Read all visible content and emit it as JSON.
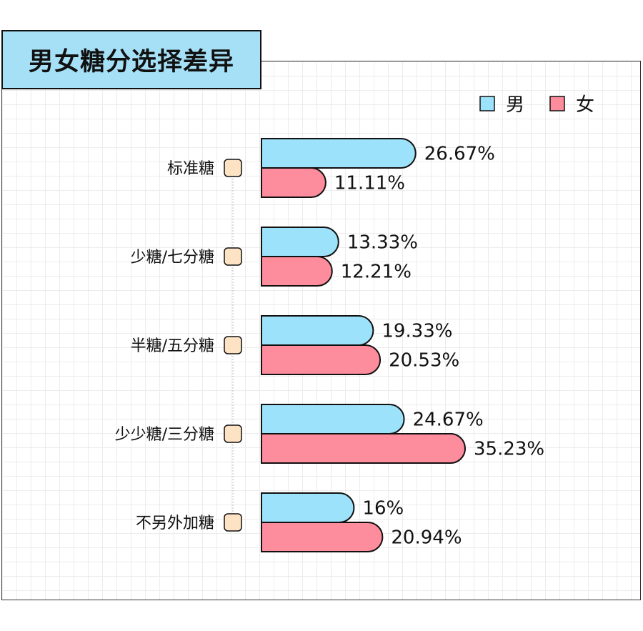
{
  "chart_data": {
    "type": "bar",
    "orientation": "horizontal",
    "title": "男女糖分选择差异",
    "categories": [
      "标准糖",
      "少糖/七分糖",
      "半糖/五分糖",
      "少少糖/三分糖",
      "不另外加糖"
    ],
    "series": [
      {
        "name": "男",
        "values": [
          26.67,
          13.33,
          19.33,
          24.67,
          16
        ],
        "labels": [
          "26.67%",
          "13.33%",
          "19.33%",
          "24.67%",
          "16%"
        ],
        "color": "#9de2fb"
      },
      {
        "name": "女",
        "values": [
          11.11,
          12.21,
          20.53,
          35.23,
          20.94
        ],
        "labels": [
          "11.11%",
          "12.21%",
          "20.53%",
          "35.23%",
          "20.94%"
        ],
        "color": "#fd8c9c"
      }
    ],
    "legend": "top-right",
    "grid": true,
    "category_marker_color": "#fde3c4"
  }
}
